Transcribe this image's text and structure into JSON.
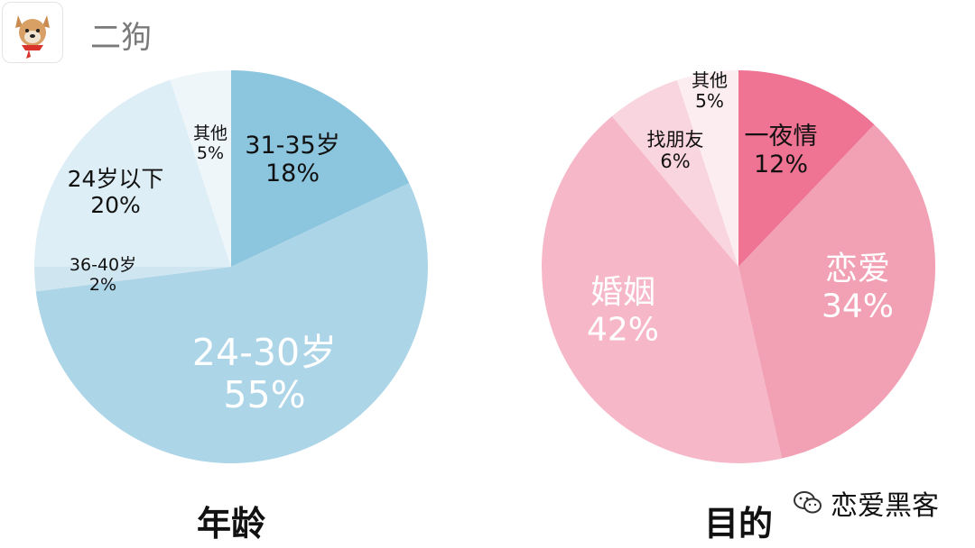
{
  "header": {
    "username": "二狗"
  },
  "watermark": {
    "text": "恋爱黑客"
  },
  "colors": {
    "age": [
      "#8cc5de",
      "#add5e8",
      "#cfe6f1",
      "#ddeef6",
      "#eff6fa"
    ],
    "purpose": [
      "#ef7393",
      "#f2a1b4",
      "#f6b8c9",
      "#f9d5df",
      "#fcedf1"
    ]
  },
  "chart_data": [
    {
      "type": "pie",
      "title": "年龄",
      "slices": [
        {
          "label": "31-35岁",
          "value": 18,
          "value_label": "18%"
        },
        {
          "label": "24-30岁",
          "value": 55,
          "value_label": "55%"
        },
        {
          "label": "36-40岁",
          "value": 2,
          "value_label": "2%"
        },
        {
          "label": "24岁以下",
          "value": 20,
          "value_label": "20%"
        },
        {
          "label": "其他",
          "value": 5,
          "value_label": "5%"
        }
      ]
    },
    {
      "type": "pie",
      "title": "目的",
      "slices": [
        {
          "label": "一夜情",
          "value": 12,
          "value_label": "12%"
        },
        {
          "label": "恋爱",
          "value": 34,
          "value_label": "34%"
        },
        {
          "label": "婚姻",
          "value": 42,
          "value_label": "42%"
        },
        {
          "label": "找朋友",
          "value": 6,
          "value_label": "6%"
        },
        {
          "label": "其他",
          "value": 5,
          "value_label": "5%"
        }
      ]
    }
  ]
}
